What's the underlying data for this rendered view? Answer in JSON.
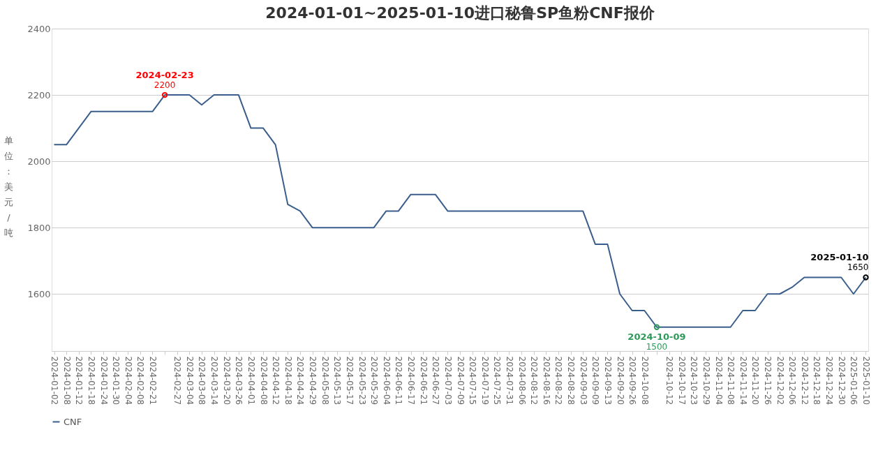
{
  "chart_data": {
    "type": "line",
    "title": "2024-01-01~2025-01-10进口秘鲁SP鱼粉CNF报价",
    "ylabel": "单位：美元/吨",
    "categories": [
      "2024-01-02",
      "2024-01-08",
      "2024-01-12",
      "2024-01-18",
      "2024-01-24",
      "2024-01-30",
      "2024-02-04",
      "2024-02-08",
      "2024-02-21",
      null,
      "2024-02-27",
      "2024-03-04",
      "2024-03-08",
      "2024-03-14",
      "2024-03-20",
      "2024-03-26",
      "2024-04-01",
      "2024-04-08",
      "2024-04-12",
      "2024-04-18",
      "2024-04-24",
      "2024-04-29",
      "2024-05-08",
      "2024-05-13",
      "2024-05-17",
      "2024-05-23",
      "2024-05-29",
      "2024-06-04",
      "2024-06-11",
      "2024-06-17",
      "2024-06-21",
      "2024-06-27",
      "2024-07-03",
      "2024-07-09",
      "2024-07-15",
      "2024-07-19",
      "2024-07-25",
      "2024-07-31",
      "2024-08-06",
      "2024-08-12",
      "2024-08-16",
      "2024-08-22",
      "2024-08-28",
      "2024-09-03",
      "2024-09-09",
      "2024-09-13",
      "2024-09-20",
      "2024-09-26",
      "2024-10-08",
      null,
      "2024-10-12",
      "2024-10-17",
      "2024-10-23",
      "2024-10-29",
      "2024-11-04",
      "2024-11-08",
      "2024-11-14",
      "2024-11-20",
      "2024-11-26",
      "2024-12-02",
      "2024-12-06",
      "2024-12-12",
      "2024-12-18",
      "2024-12-24",
      "2024-12-30",
      "2025-01-06",
      "2025-01-10"
    ],
    "series": [
      {
        "name": "CNF",
        "color": "#3a5e8c",
        "values": [
          2050,
          2050,
          2100,
          2150,
          2150,
          2150,
          2150,
          2150,
          2150,
          2200,
          2200,
          2200,
          2170,
          2200,
          2200,
          2200,
          2100,
          2100,
          2050,
          1870,
          1850,
          1800,
          1800,
          1800,
          1800,
          1800,
          1800,
          1850,
          1850,
          1900,
          1900,
          1900,
          1850,
          1850,
          1850,
          1850,
          1850,
          1850,
          1850,
          1850,
          1850,
          1850,
          1850,
          1850,
          1750,
          1750,
          1600,
          1550,
          1550,
          1500,
          1500,
          1500,
          1500,
          1500,
          1500,
          1500,
          1550,
          1550,
          1600,
          1600,
          1620,
          1650,
          1650,
          1650,
          1650,
          1600,
          1650
        ]
      }
    ],
    "ylim": [
      1428,
      2400
    ],
    "yticks": [
      1600,
      1800,
      2000,
      2200,
      2400
    ],
    "grid": "y",
    "legend": "bottom",
    "marker": "none",
    "line_style": "solid",
    "annotations": [
      {
        "text": "2024-02-23\n2200",
        "y": 2200
      },
      {
        "text": "2024-10-09\n1500",
        "y": 1500
      },
      {
        "text": "2025-01-10\n1650",
        "x": "2025-01-10",
        "y": 1650
      }
    ]
  }
}
